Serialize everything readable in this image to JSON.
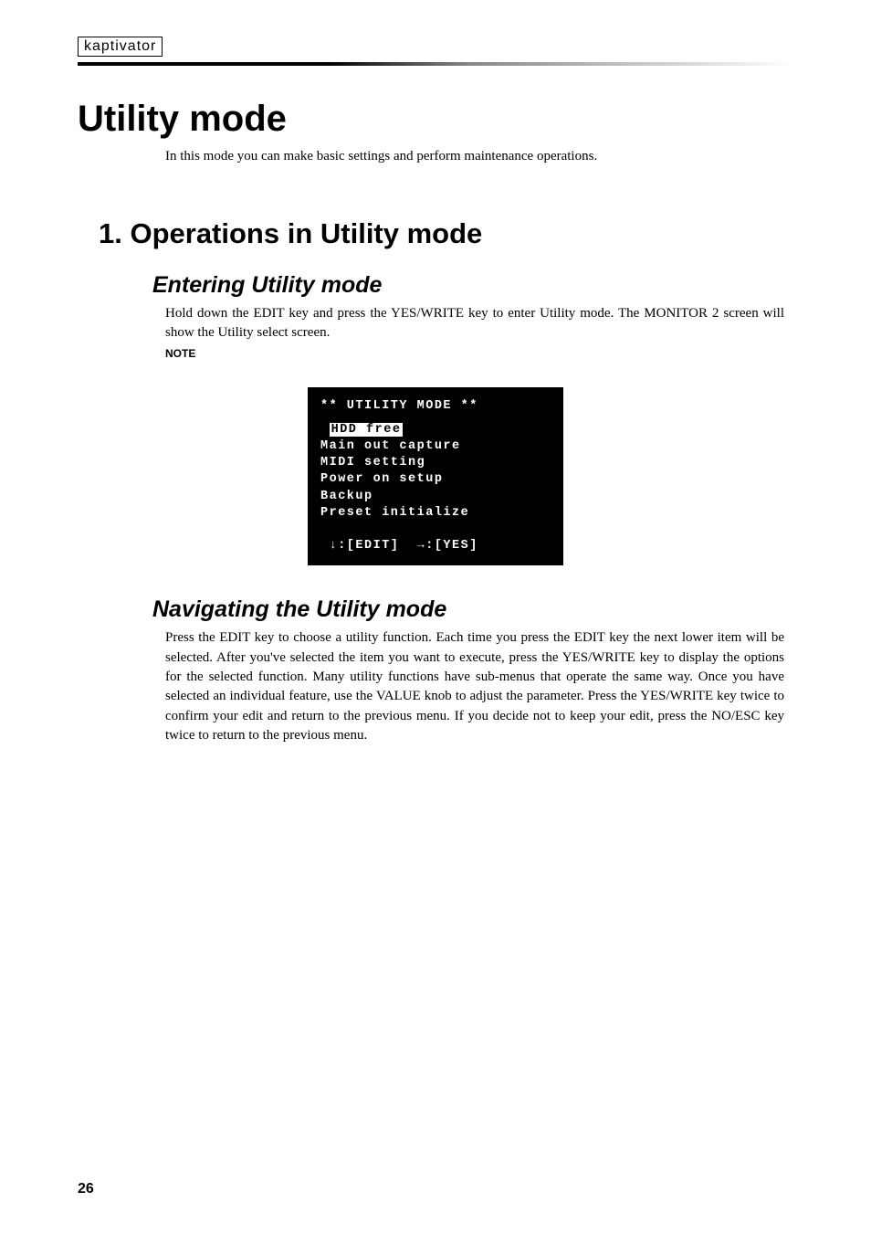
{
  "brand": "kaptivator",
  "h1": "Utility mode",
  "intro": "In this mode you can make basic settings and perform maintenance operations.",
  "h2": "1.  Operations in Utility mode",
  "section1": {
    "heading": "Entering Utility mode",
    "para": "Hold down the EDIT key and press the YES/WRITE key to enter Utility mode. The MONITOR 2 screen will show the Utility select screen.",
    "note": "NOTE"
  },
  "screen": {
    "title": "** UTILITY MODE **",
    "selected": "HDD free",
    "rows": [
      "Main out capture",
      "MIDI setting",
      "Power on setup",
      "Backup",
      "Preset initialize"
    ],
    "footer": " ↓:[EDIT]  →:[YES]"
  },
  "section2": {
    "heading": "Navigating the Utility mode",
    "para": "Press the EDIT key to choose a utility function. Each time you press the EDIT key the next lower item will be selected. After you've selected the item you want to execute, press the YES/WRITE key to display the options for the selected function. Many utility functions have sub-menus that operate the same way. Once you have selected an individual feature, use the VALUE knob to adjust the parameter. Press the YES/WRITE key twice to confirm your edit and return to the previous  menu. If you decide not to keep your edit, press the NO/ESC key twice to return to the previous menu."
  },
  "pageNumber": "26"
}
